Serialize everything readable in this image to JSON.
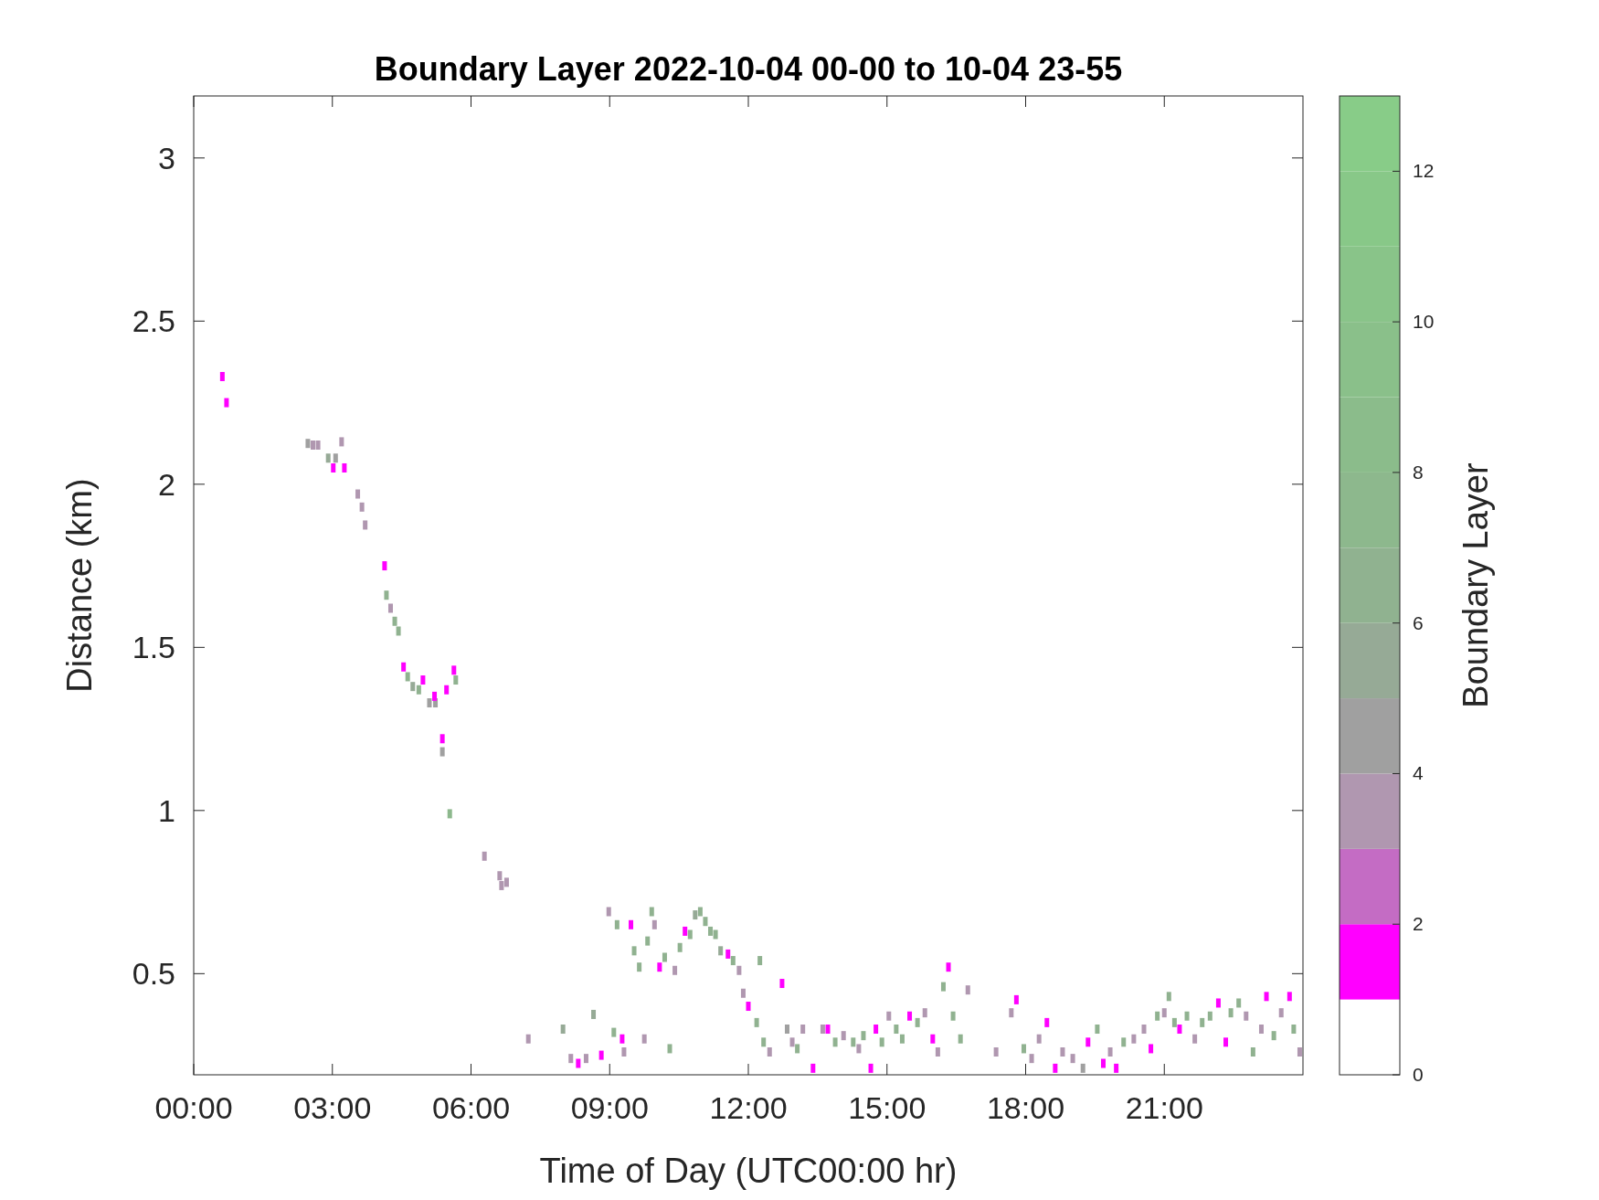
{
  "chart_data": {
    "type": "scatter",
    "title": "Boundary Layer 2022-10-04 00-00 to 10-04 23-55",
    "xlabel": "Time of Day (UTC00:00 hr)",
    "ylabel": "Distance (km)",
    "clabel": "Boundary Layer",
    "marker": "square",
    "grid": false,
    "xlim": [
      0,
      24
    ],
    "xticks": [
      {
        "value": 0,
        "label": "00:00"
      },
      {
        "value": 3,
        "label": "03:00"
      },
      {
        "value": 6,
        "label": "06:00"
      },
      {
        "value": 9,
        "label": "09:00"
      },
      {
        "value": 12,
        "label": "12:00"
      },
      {
        "value": 15,
        "label": "15:00"
      },
      {
        "value": 18,
        "label": "18:00"
      },
      {
        "value": 21,
        "label": "21:00"
      }
    ],
    "ylim": [
      0.19,
      3.19
    ],
    "yticks": [
      0.5,
      1,
      1.5,
      2,
      2.5,
      3
    ],
    "clim": [
      0,
      13
    ],
    "cticks": [
      0,
      2,
      4,
      6,
      8,
      10,
      12
    ],
    "x": [
      0.62,
      0.71,
      2.47,
      2.58,
      2.69,
      2.91,
      3.07,
      3.02,
      3.2,
      3.26,
      3.55,
      3.64,
      3.71,
      4.13,
      4.17,
      4.26,
      4.35,
      4.43,
      4.54,
      4.63,
      4.74,
      4.87,
      4.96,
      5.1,
      5.23,
      5.21,
      5.38,
      5.38,
      5.47,
      5.63,
      5.67,
      5.54,
      6.29,
      6.62,
      6.66,
      6.77,
      7.24,
      7.99,
      8.16,
      8.32,
      8.49,
      8.65,
      8.82,
      8.98,
      9.09,
      9.16,
      9.27,
      9.31,
      9.46,
      9.53,
      9.64,
      9.75,
      9.82,
      9.91,
      9.97,
      10.08,
      10.19,
      10.3,
      10.41,
      10.52,
      10.63,
      10.74,
      10.85,
      10.96,
      11.07,
      11.18,
      11.29,
      11.4,
      11.56,
      11.67,
      11.8,
      11.89,
      12.0,
      12.18,
      12.25,
      12.33,
      12.46,
      12.73,
      12.84,
      12.95,
      13.06,
      13.18,
      13.4,
      13.61,
      13.72,
      13.88,
      14.06,
      14.27,
      14.39,
      14.49,
      14.65,
      14.76,
      14.89,
      15.04,
      15.2,
      15.33,
      15.49,
      15.66,
      15.82,
      15.99,
      16.1,
      16.22,
      16.33,
      16.43,
      16.59,
      16.75,
      17.36,
      17.69,
      17.8,
      17.96,
      18.13,
      18.29,
      18.46,
      18.64,
      18.8,
      19.02,
      19.24,
      19.35,
      19.55,
      19.68,
      19.83,
      19.96,
      20.12,
      20.34,
      20.56,
      20.71,
      20.85,
      21.0,
      21.1,
      21.22,
      21.33,
      21.49,
      21.66,
      21.82,
      21.99,
      22.17,
      22.33,
      22.44,
      22.61,
      22.77,
      22.92,
      23.1,
      23.21,
      23.37,
      23.53,
      23.71,
      23.8,
      23.93
    ],
    "values": [
      2.33,
      2.25,
      2.125,
      2.12,
      2.12,
      2.08,
      2.08,
      2.05,
      2.13,
      2.05,
      1.97,
      1.93,
      1.875,
      1.75,
      1.66,
      1.62,
      1.58,
      1.55,
      1.44,
      1.41,
      1.38,
      1.37,
      1.4,
      1.33,
      1.33,
      1.35,
      1.22,
      1.18,
      1.37,
      1.43,
      1.4,
      0.99,
      0.86,
      0.8,
      0.77,
      0.78,
      0.3,
      0.33,
      0.24,
      0.225,
      0.24,
      0.375,
      0.25,
      0.69,
      0.32,
      0.65,
      0.3,
      0.26,
      0.65,
      0.57,
      0.52,
      0.3,
      0.6,
      0.69,
      0.65,
      0.52,
      0.55,
      0.27,
      0.51,
      0.58,
      0.63,
      0.62,
      0.68,
      0.69,
      0.66,
      0.63,
      0.62,
      0.57,
      0.56,
      0.54,
      0.51,
      0.44,
      0.4,
      0.35,
      0.54,
      0.29,
      0.26,
      0.47,
      0.33,
      0.29,
      0.27,
      0.33,
      0.21,
      0.33,
      0.33,
      0.29,
      0.31,
      0.29,
      0.27,
      0.31,
      0.21,
      0.33,
      0.29,
      0.37,
      0.33,
      0.3,
      0.37,
      0.35,
      0.38,
      0.3,
      0.26,
      0.46,
      0.52,
      0.37,
      0.3,
      0.45,
      0.26,
      0.38,
      0.42,
      0.27,
      0.24,
      0.3,
      0.35,
      0.21,
      0.26,
      0.24,
      0.21,
      0.29,
      0.33,
      0.225,
      0.26,
      0.21,
      0.29,
      0.3,
      0.33,
      0.27,
      0.37,
      0.38,
      0.43,
      0.35,
      0.33,
      0.37,
      0.3,
      0.35,
      0.37,
      0.41,
      0.29,
      0.38,
      0.41,
      0.37,
      0.26,
      0.33,
      0.43,
      0.31,
      0.38,
      0.43,
      0.33,
      0.26
    ],
    "cvalues": [
      1.5,
      1.5,
      4.5,
      3.5,
      3.5,
      5,
      4.5,
      1.5,
      3.5,
      1.5,
      3.5,
      3.5,
      3.5,
      1.5,
      6,
      3.5,
      6,
      6,
      1.5,
      6,
      5,
      6,
      1.5,
      4.5,
      4.5,
      1.5,
      1.5,
      4.5,
      1.5,
      1.5,
      6,
      7,
      3.5,
      3.5,
      3.5,
      3.5,
      3.5,
      5,
      3.5,
      1.5,
      3.5,
      5,
      1.5,
      3.5,
      6,
      6,
      1.5,
      3.5,
      1.5,
      6,
      6,
      3.5,
      6,
      6,
      3.5,
      1.5,
      6,
      6,
      3.5,
      6,
      1.5,
      6,
      5,
      6,
      6,
      6,
      6,
      5,
      1.5,
      6,
      3.5,
      3.5,
      1.5,
      6,
      6,
      6,
      3.5,
      1.5,
      4.5,
      3.5,
      6,
      3.5,
      1.5,
      3.5,
      1.5,
      6,
      3.5,
      6,
      3.5,
      6,
      1.5,
      1.5,
      6,
      3.5,
      6,
      6,
      1.5,
      6,
      3.5,
      1.5,
      3.5,
      6,
      1.5,
      6,
      6,
      3.5,
      3.5,
      3.5,
      1.5,
      6,
      3.5,
      3.5,
      1.5,
      1.5,
      3.5,
      3.5,
      4.5,
      1.5,
      6,
      1.5,
      3.5,
      1.5,
      6,
      3.5,
      3.5,
      1.5,
      6,
      3.5,
      6,
      6,
      1.5,
      6,
      3.5,
      6,
      6,
      1.5,
      1.5,
      6,
      6,
      3.5,
      6,
      3.5,
      1.5,
      6,
      3.5,
      1.5,
      6,
      3.5
    ]
  }
}
